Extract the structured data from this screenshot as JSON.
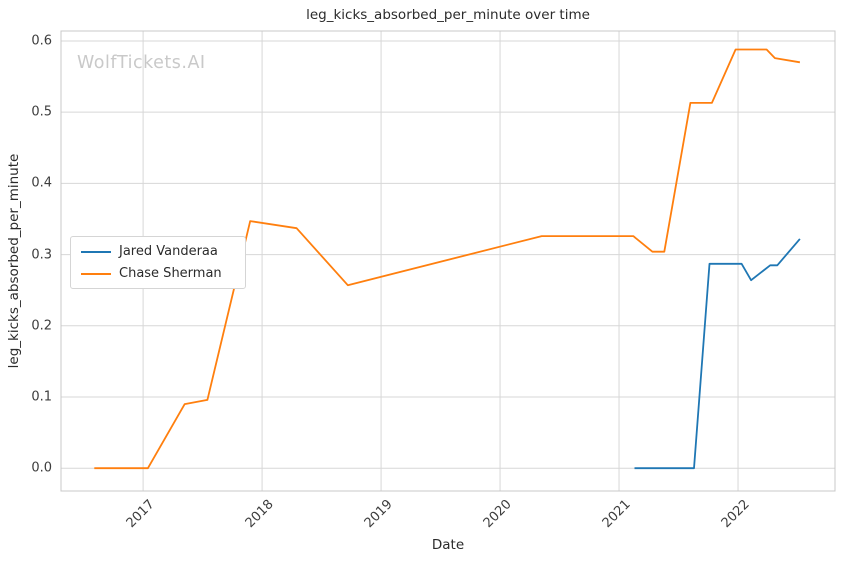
{
  "watermark": "WolfTickets.AI",
  "colors": {
    "grid": "#d7d7d7",
    "plot_border": "#c8c8c8",
    "background": "#ffffff",
    "tick_text": "#3d3d3d",
    "text": "#2b2b2b",
    "watermark_text": "#c9c9c9"
  },
  "chart_data": {
    "type": "line",
    "title": "leg_kicks_absorbed_per_minute over time",
    "xlabel": "Date",
    "ylabel": "leg_kicks_absorbed_per_minute",
    "grid": true,
    "legend_position": "center-left",
    "x_unit": "decimal_year",
    "xlim": [
      2016.31,
      2022.815
    ],
    "ylim": [
      -0.032,
      0.614
    ],
    "x_tick_values": [
      2017,
      2018,
      2019,
      2020,
      2021,
      2022
    ],
    "x_tick_labels": [
      "2017",
      "2018",
      "2019",
      "2020",
      "2021",
      "2022"
    ],
    "y_tick_values": [
      0.0,
      0.1,
      0.2,
      0.3,
      0.4,
      0.5,
      0.6
    ],
    "y_tick_labels": [
      "0.0",
      "0.1",
      "0.2",
      "0.3",
      "0.4",
      "0.5",
      "0.6"
    ],
    "series": [
      {
        "name": "Jared Vanderaa",
        "color": "#1f77b4",
        "points": [
          [
            2021.13,
            0.0
          ],
          [
            2021.63,
            0.0
          ],
          [
            2021.76,
            0.287
          ],
          [
            2022.03,
            0.287
          ],
          [
            2022.11,
            0.264
          ],
          [
            2022.27,
            0.285
          ],
          [
            2022.33,
            0.285
          ],
          [
            2022.52,
            0.322
          ]
        ]
      },
      {
        "name": "Chase Sherman",
        "color": "#ff7f0e",
        "points": [
          [
            2016.59,
            0.0
          ],
          [
            2017.04,
            0.0
          ],
          [
            2017.35,
            0.09
          ],
          [
            2017.54,
            0.096
          ],
          [
            2017.9,
            0.347
          ],
          [
            2018.29,
            0.337
          ],
          [
            2018.72,
            0.257
          ],
          [
            2020.35,
            0.326
          ],
          [
            2021.12,
            0.326
          ],
          [
            2021.28,
            0.304
          ],
          [
            2021.38,
            0.304
          ],
          [
            2021.6,
            0.513
          ],
          [
            2021.78,
            0.513
          ],
          [
            2021.98,
            0.588
          ],
          [
            2022.24,
            0.588
          ],
          [
            2022.31,
            0.576
          ],
          [
            2022.52,
            0.57
          ]
        ]
      }
    ]
  }
}
